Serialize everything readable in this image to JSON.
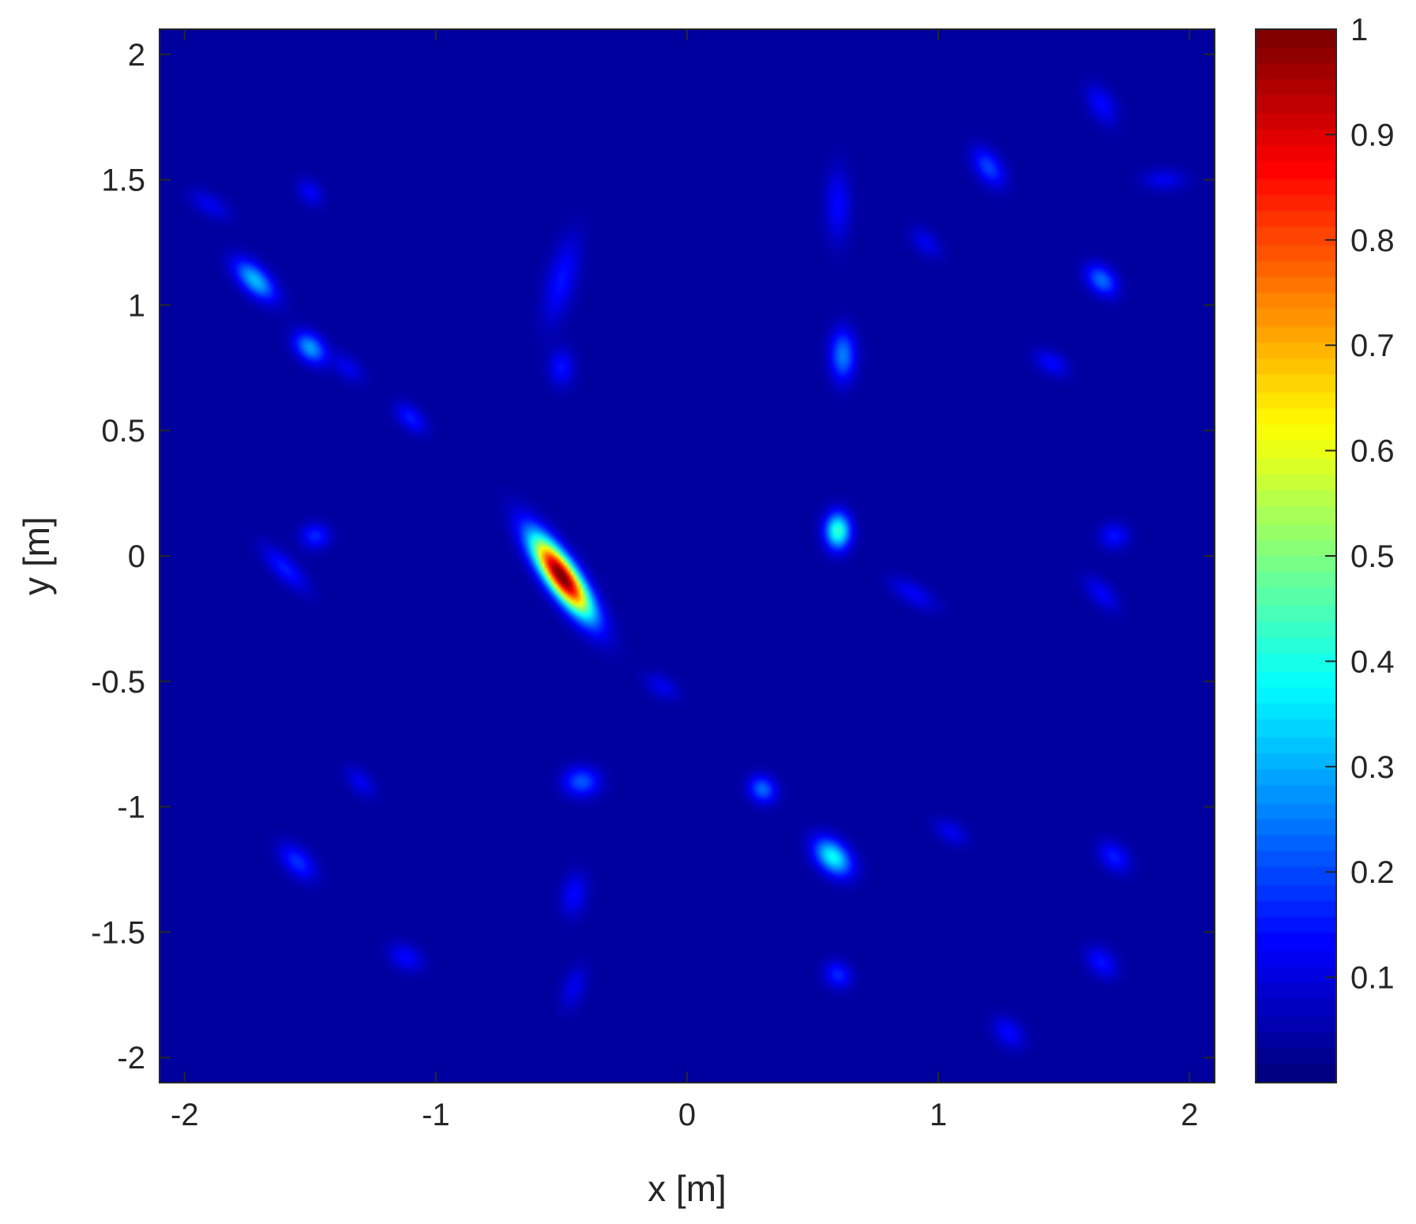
{
  "chart_data": {
    "type": "heatmap",
    "title": "",
    "xlabel": "x [m]",
    "ylabel": "y [m]",
    "xlim": [
      -2.1,
      2.1
    ],
    "ylim": [
      -2.1,
      2.1
    ],
    "x_ticks": [
      -2,
      -1,
      0,
      1,
      2
    ],
    "x_tick_labels": [
      "-2",
      "-1",
      "0",
      "1",
      "2"
    ],
    "y_ticks": [
      2,
      1.5,
      1,
      0.5,
      0,
      -0.5,
      -1,
      -1.5,
      -2
    ],
    "y_tick_labels": [
      "2",
      "1.5",
      "1",
      "0.5",
      "0",
      "-0.5",
      "-1",
      "-1.5",
      "-2"
    ],
    "grid": false,
    "colormap": "jet",
    "colorbar": {
      "location": "right",
      "range": [
        0,
        1
      ],
      "ticks": [
        1,
        0.9,
        0.8,
        0.7,
        0.6,
        0.5,
        0.4,
        0.3,
        0.2,
        0.1
      ],
      "tick_labels": [
        "1",
        "0.9",
        "0.8",
        "0.7",
        "0.6",
        "0.5",
        "0.4",
        "0.3",
        "0.2",
        "0.1"
      ]
    },
    "background_value": 0.03,
    "features": [
      {
        "x": -0.5,
        "y": -0.08,
        "peak": 1.0,
        "sigma_major": 0.13,
        "sigma_minor": 0.04,
        "angle_deg": -55
      },
      {
        "x": 0.6,
        "y": 0.1,
        "peak": 0.4,
        "sigma_major": 0.05,
        "sigma_minor": 0.035,
        "angle_deg": 90
      },
      {
        "x": 0.58,
        "y": -1.2,
        "peak": 0.35,
        "sigma_major": 0.06,
        "sigma_minor": 0.04,
        "angle_deg": -45
      },
      {
        "x": -1.72,
        "y": 1.1,
        "peak": 0.28,
        "sigma_major": 0.07,
        "sigma_minor": 0.035,
        "angle_deg": -45
      },
      {
        "x": -1.5,
        "y": 0.83,
        "peak": 0.25,
        "sigma_major": 0.05,
        "sigma_minor": 0.035,
        "angle_deg": -45
      },
      {
        "x": 0.62,
        "y": 0.8,
        "peak": 0.22,
        "sigma_major": 0.07,
        "sigma_minor": 0.035,
        "angle_deg": 90
      },
      {
        "x": 1.65,
        "y": 1.1,
        "peak": 0.2,
        "sigma_major": 0.05,
        "sigma_minor": 0.035,
        "angle_deg": -45
      },
      {
        "x": 0.3,
        "y": -0.93,
        "peak": 0.2,
        "sigma_major": 0.04,
        "sigma_minor": 0.035,
        "angle_deg": -45
      },
      {
        "x": -0.42,
        "y": -0.9,
        "peak": 0.18,
        "sigma_major": 0.05,
        "sigma_minor": 0.04,
        "angle_deg": 0
      },
      {
        "x": 1.2,
        "y": 1.55,
        "peak": 0.16,
        "sigma_major": 0.06,
        "sigma_minor": 0.035,
        "angle_deg": -55
      },
      {
        "x": -1.55,
        "y": -1.22,
        "peak": 0.14,
        "sigma_major": 0.06,
        "sigma_minor": 0.035,
        "angle_deg": -45
      },
      {
        "x": 0.6,
        "y": -1.67,
        "peak": 0.13,
        "sigma_major": 0.04,
        "sigma_minor": 0.035,
        "angle_deg": -45
      },
      {
        "x": -1.48,
        "y": 0.08,
        "peak": 0.13,
        "sigma_major": 0.04,
        "sigma_minor": 0.035,
        "angle_deg": 0
      },
      {
        "x": -1.6,
        "y": -0.05,
        "peak": 0.12,
        "sigma_major": 0.08,
        "sigma_minor": 0.03,
        "angle_deg": -45
      },
      {
        "x": -1.1,
        "y": 0.55,
        "peak": 0.12,
        "sigma_major": 0.05,
        "sigma_minor": 0.03,
        "angle_deg": -45
      },
      {
        "x": -0.5,
        "y": 1.1,
        "peak": 0.11,
        "sigma_major": 0.12,
        "sigma_minor": 0.04,
        "angle_deg": 75
      },
      {
        "x": -0.5,
        "y": 0.75,
        "peak": 0.11,
        "sigma_major": 0.05,
        "sigma_minor": 0.035,
        "angle_deg": 90
      },
      {
        "x": 0.6,
        "y": 1.4,
        "peak": 0.1,
        "sigma_major": 0.1,
        "sigma_minor": 0.035,
        "angle_deg": 90
      },
      {
        "x": 1.7,
        "y": 0.08,
        "peak": 0.11,
        "sigma_major": 0.04,
        "sigma_minor": 0.035,
        "angle_deg": 0
      },
      {
        "x": 1.7,
        "y": -1.2,
        "peak": 0.12,
        "sigma_major": 0.05,
        "sigma_minor": 0.035,
        "angle_deg": -45
      },
      {
        "x": 1.65,
        "y": -1.62,
        "peak": 0.11,
        "sigma_major": 0.05,
        "sigma_minor": 0.035,
        "angle_deg": -45
      },
      {
        "x": 1.28,
        "y": -1.9,
        "peak": 0.1,
        "sigma_major": 0.05,
        "sigma_minor": 0.035,
        "angle_deg": -45
      },
      {
        "x": -1.12,
        "y": -1.6,
        "peak": 0.1,
        "sigma_major": 0.05,
        "sigma_minor": 0.035,
        "angle_deg": -30
      },
      {
        "x": 1.65,
        "y": 1.8,
        "peak": 0.1,
        "sigma_major": 0.06,
        "sigma_minor": 0.035,
        "angle_deg": -60
      },
      {
        "x": 1.45,
        "y": 0.77,
        "peak": 0.1,
        "sigma_major": 0.05,
        "sigma_minor": 0.03,
        "angle_deg": -30
      },
      {
        "x": -1.5,
        "y": 1.45,
        "peak": 0.09,
        "sigma_major": 0.04,
        "sigma_minor": 0.03,
        "angle_deg": -45
      },
      {
        "x": 1.9,
        "y": 1.5,
        "peak": 0.08,
        "sigma_major": 0.06,
        "sigma_minor": 0.03,
        "angle_deg": 0
      },
      {
        "x": -0.45,
        "y": -1.35,
        "peak": 0.1,
        "sigma_major": 0.06,
        "sigma_minor": 0.035,
        "angle_deg": 80
      },
      {
        "x": -0.45,
        "y": -1.72,
        "peak": 0.08,
        "sigma_major": 0.06,
        "sigma_minor": 0.03,
        "angle_deg": 70
      },
      {
        "x": 0.9,
        "y": -0.15,
        "peak": 0.09,
        "sigma_major": 0.07,
        "sigma_minor": 0.03,
        "angle_deg": -30
      },
      {
        "x": 1.65,
        "y": -0.15,
        "peak": 0.09,
        "sigma_major": 0.06,
        "sigma_minor": 0.03,
        "angle_deg": -45
      },
      {
        "x": -0.1,
        "y": -0.52,
        "peak": 0.08,
        "sigma_major": 0.05,
        "sigma_minor": 0.03,
        "angle_deg": -30
      },
      {
        "x": -1.3,
        "y": -0.9,
        "peak": 0.08,
        "sigma_major": 0.05,
        "sigma_minor": 0.03,
        "angle_deg": -45
      },
      {
        "x": 1.05,
        "y": -1.1,
        "peak": 0.08,
        "sigma_major": 0.05,
        "sigma_minor": 0.03,
        "angle_deg": -30
      },
      {
        "x": 0.95,
        "y": 1.25,
        "peak": 0.08,
        "sigma_major": 0.05,
        "sigma_minor": 0.03,
        "angle_deg": -45
      },
      {
        "x": -1.9,
        "y": 1.4,
        "peak": 0.08,
        "sigma_major": 0.06,
        "sigma_minor": 0.03,
        "angle_deg": -30
      },
      {
        "x": -1.35,
        "y": 0.75,
        "peak": 0.08,
        "sigma_major": 0.05,
        "sigma_minor": 0.03,
        "angle_deg": -40
      }
    ]
  }
}
